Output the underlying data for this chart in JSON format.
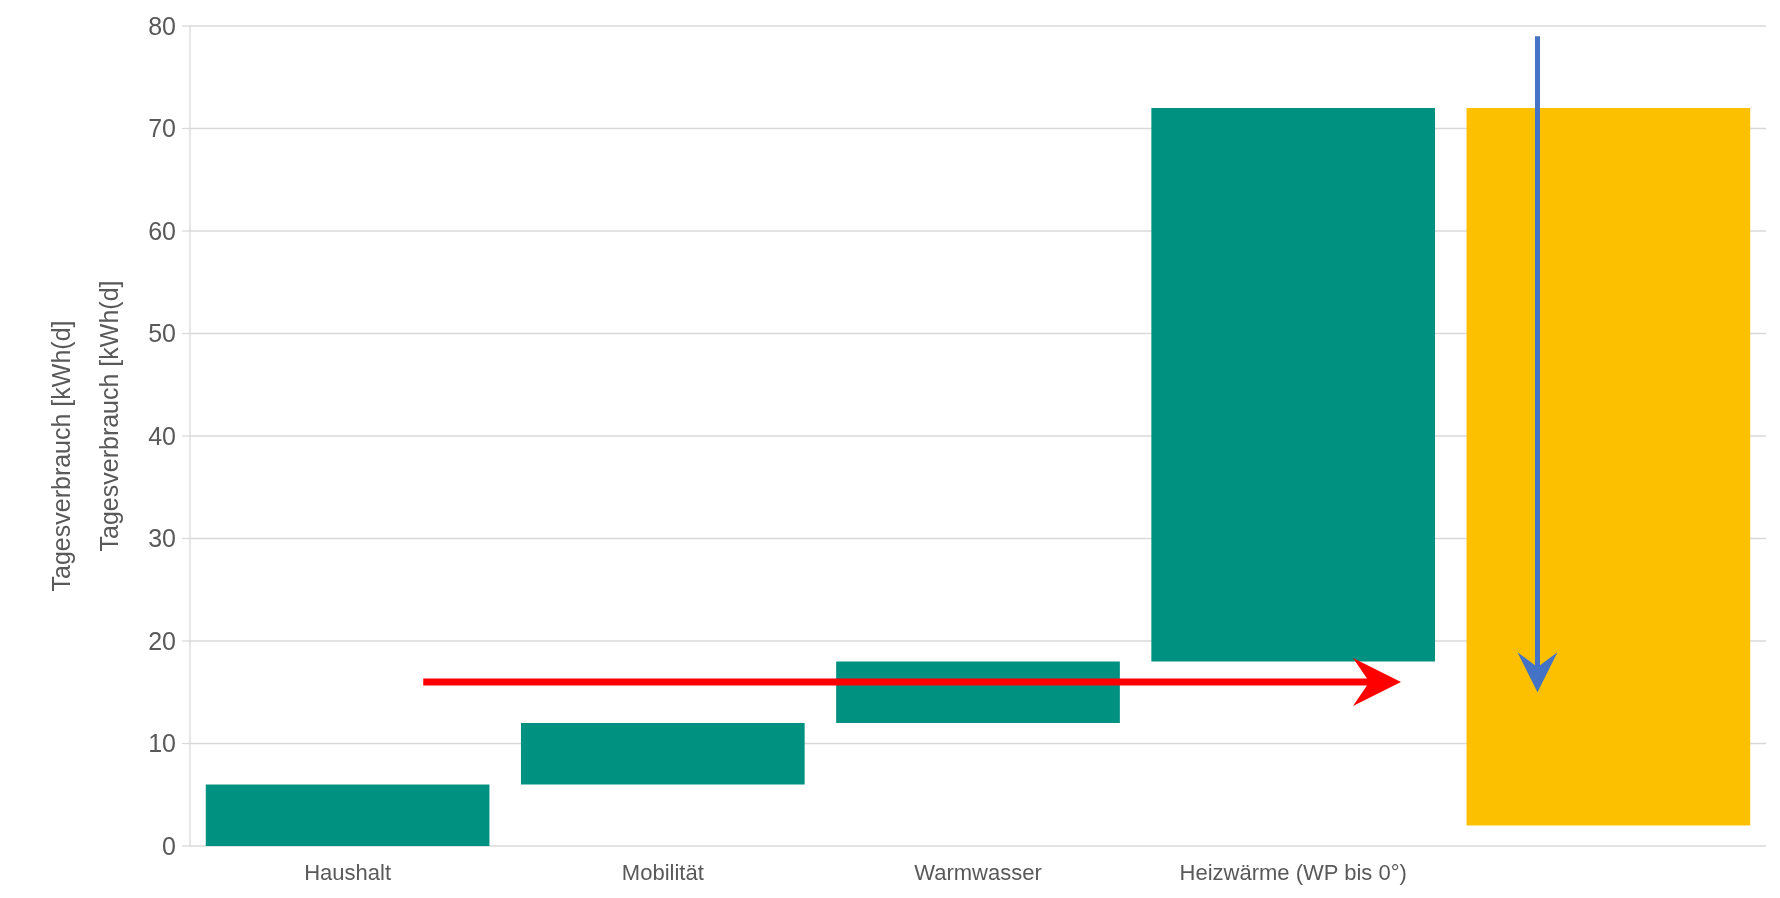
{
  "chart_data": {
    "type": "bar",
    "categories": [
      "Haushalt",
      "Mobilität",
      "Warmwasser",
      "Heizwärme (WP bis 0°)",
      null
    ],
    "base": [
      0,
      6,
      12,
      18,
      2
    ],
    "values": [
      6,
      6,
      6,
      54,
      70
    ],
    "colors": [
      "#009180",
      "#009180",
      "#009180",
      "#009180",
      "#fdc000"
    ],
    "ylabel": "Tagesverbrauch [kWh(d]",
    "annotations": [
      "Tagesverbrauch [kWh(d]"
    ],
    "ylim": [
      0,
      80
    ],
    "yticks": [
      0,
      10,
      20,
      30,
      40,
      50,
      60,
      70,
      80
    ],
    "grid": "y"
  }
}
